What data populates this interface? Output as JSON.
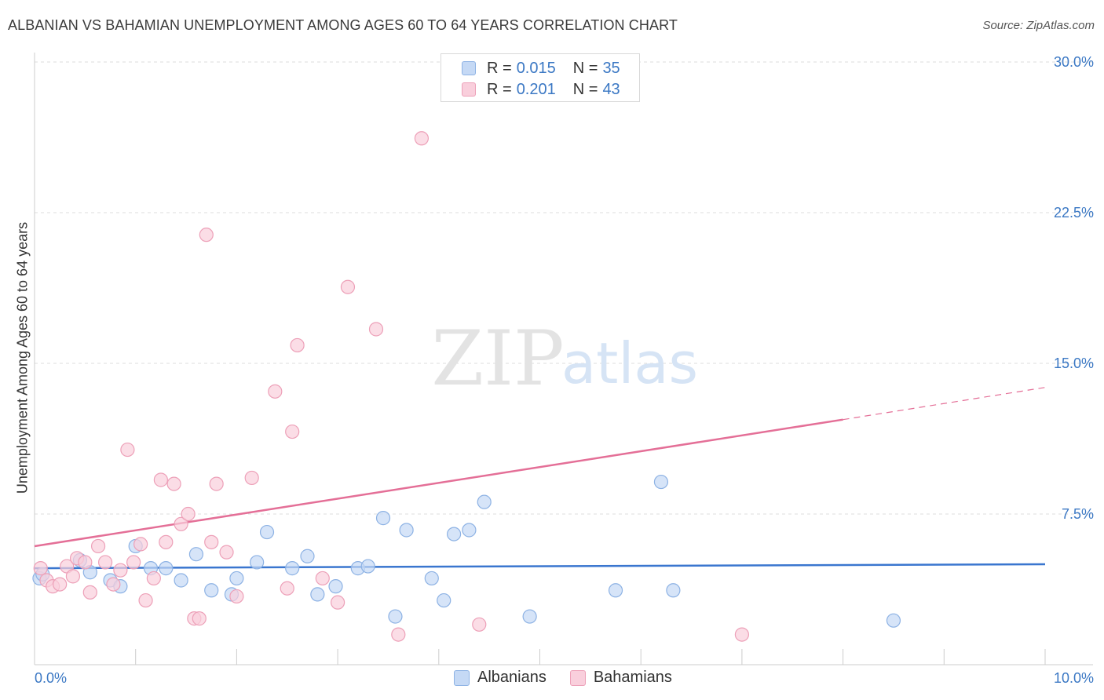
{
  "header": {
    "title": "ALBANIAN VS BAHAMIAN UNEMPLOYMENT AMONG AGES 60 TO 64 YEARS CORRELATION CHART",
    "source": "Source: ZipAtlas.com"
  },
  "watermark": {
    "zip": "ZIP",
    "atlas": "atlas"
  },
  "legend_top": {
    "rows": [
      {
        "r_label": "R =",
        "r_value": "0.015",
        "n_label": "N =",
        "n_value": "35"
      },
      {
        "r_label": "R =",
        "r_value": "0.201",
        "n_label": "N =",
        "n_value": "43"
      }
    ]
  },
  "legend_bottom": {
    "series1": "Albanians",
    "series2": "Bahamians"
  },
  "colors": {
    "albanian_fill": "#c5d9f5",
    "albanian_stroke": "#8db2e4",
    "albanian_line": "#3a76cf",
    "bahamian_fill": "#f9cfdc",
    "bahamian_stroke": "#eda0b8",
    "bahamian_line": "#e46f97",
    "axis_label": "#3b78c4",
    "grid": "#dddddd"
  },
  "chart_data": {
    "type": "scatter",
    "title": "ALBANIAN VS BAHAMIAN UNEMPLOYMENT AMONG AGES 60 TO 64 YEARS CORRELATION CHART",
    "xlabel": "",
    "ylabel": "Unemployment Among Ages 60 to 64 years",
    "xlim": [
      0,
      10
    ],
    "ylim": [
      0,
      30
    ],
    "x_tick_labels": [
      "0.0%",
      "10.0%"
    ],
    "y_ticks": [
      7.5,
      15.0,
      22.5,
      30.0
    ],
    "y_tick_labels": [
      "7.5%",
      "15.0%",
      "22.5%",
      "30.0%"
    ],
    "series": [
      {
        "name": "Albanians",
        "r": 0.015,
        "n": 35,
        "points": [
          [
            0.05,
            4.3
          ],
          [
            0.45,
            5.2
          ],
          [
            0.55,
            4.6
          ],
          [
            0.75,
            4.2
          ],
          [
            0.85,
            3.9
          ],
          [
            1.0,
            5.9
          ],
          [
            1.15,
            4.8
          ],
          [
            1.3,
            4.8
          ],
          [
            1.45,
            4.2
          ],
          [
            1.6,
            5.5
          ],
          [
            1.75,
            3.7
          ],
          [
            1.95,
            3.5
          ],
          [
            2.0,
            4.3
          ],
          [
            2.2,
            5.1
          ],
          [
            2.3,
            6.6
          ],
          [
            2.55,
            4.8
          ],
          [
            2.7,
            5.4
          ],
          [
            2.8,
            3.5
          ],
          [
            2.98,
            3.9
          ],
          [
            3.2,
            4.8
          ],
          [
            3.3,
            4.9
          ],
          [
            3.45,
            7.3
          ],
          [
            3.57,
            2.4
          ],
          [
            3.68,
            6.7
          ],
          [
            3.93,
            4.3
          ],
          [
            4.05,
            3.2
          ],
          [
            4.15,
            6.5
          ],
          [
            4.3,
            6.7
          ],
          [
            4.45,
            8.1
          ],
          [
            4.9,
            2.4
          ],
          [
            5.75,
            3.7
          ],
          [
            6.2,
            9.1
          ],
          [
            6.32,
            3.7
          ],
          [
            8.5,
            2.2
          ],
          [
            0.08,
            4.5
          ]
        ]
      },
      {
        "name": "Bahamians",
        "r": 0.201,
        "n": 43,
        "points": [
          [
            0.06,
            4.8
          ],
          [
            0.12,
            4.2
          ],
          [
            0.18,
            3.9
          ],
          [
            0.25,
            4.0
          ],
          [
            0.32,
            4.9
          ],
          [
            0.38,
            4.4
          ],
          [
            0.42,
            5.3
          ],
          [
            0.5,
            5.1
          ],
          [
            0.55,
            3.6
          ],
          [
            0.63,
            5.9
          ],
          [
            0.7,
            5.1
          ],
          [
            0.78,
            4.0
          ],
          [
            0.85,
            4.7
          ],
          [
            0.92,
            10.7
          ],
          [
            0.98,
            5.1
          ],
          [
            1.05,
            6.0
          ],
          [
            1.1,
            3.2
          ],
          [
            1.18,
            4.3
          ],
          [
            1.25,
            9.2
          ],
          [
            1.3,
            6.1
          ],
          [
            1.38,
            9.0
          ],
          [
            1.45,
            7.0
          ],
          [
            1.52,
            7.5
          ],
          [
            1.58,
            2.3
          ],
          [
            1.63,
            2.3
          ],
          [
            1.7,
            21.4
          ],
          [
            1.75,
            6.1
          ],
          [
            1.8,
            9.0
          ],
          [
            1.9,
            5.6
          ],
          [
            2.0,
            3.4
          ],
          [
            2.15,
            9.3
          ],
          [
            2.38,
            13.6
          ],
          [
            2.5,
            3.8
          ],
          [
            2.55,
            11.6
          ],
          [
            2.6,
            15.9
          ],
          [
            2.85,
            4.3
          ],
          [
            3.0,
            3.1
          ],
          [
            3.1,
            18.8
          ],
          [
            3.38,
            16.7
          ],
          [
            3.6,
            1.5
          ],
          [
            3.83,
            26.2
          ],
          [
            4.4,
            2.0
          ],
          [
            7.0,
            1.5
          ]
        ]
      }
    ],
    "trendlines": [
      {
        "series": "Albanians",
        "x0": 0,
        "y0": 4.8,
        "x1": 10,
        "y1": 5.0,
        "style": "solid"
      },
      {
        "series": "Bahamians",
        "x0": 0,
        "y0": 5.9,
        "x1": 8.0,
        "y1": 12.2,
        "style": "solid"
      },
      {
        "series": "Bahamians",
        "x0": 8.0,
        "y0": 12.2,
        "x1": 10,
        "y1": 13.8,
        "style": "dashed"
      }
    ]
  }
}
